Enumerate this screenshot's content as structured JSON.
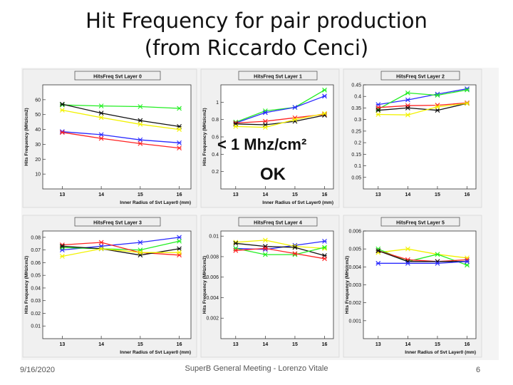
{
  "slide": {
    "title_line1": "Hit Frequency for pair production",
    "title_line2": "(from Riccardo Cenci)",
    "annotation": "< 1 Mhz/cm²",
    "annotation_ok": "OK",
    "footer_date": "9/16/2020",
    "footer_center": "SuperB General Meeting - Lorenzo Vitale",
    "footer_page": "6"
  },
  "colors": {
    "black": "#111111",
    "red": "#ff2222",
    "green": "#22ee22",
    "blue": "#2a2aff",
    "yellow": "#f2f200",
    "magenta": "#dd22dd",
    "panel_bg": "#f0f0f0",
    "title_box": "#eeeeee"
  },
  "chart_data": [
    {
      "type": "line",
      "title": "HitsFreq Svt Layer 0",
      "xlabel": "Inner Radius of Svt Layer0 (mm)",
      "ylabel": "Hits Frequency (MHz/cm2)",
      "x": [
        13,
        14,
        15,
        16
      ],
      "ylim": [
        0,
        70
      ],
      "yticks": [
        10,
        20,
        30,
        40,
        50,
        60
      ],
      "ytick_labels": [
        "10",
        "20",
        "30",
        "40",
        "50",
        "60"
      ],
      "series": [
        {
          "color": "green",
          "values": [
            56.5,
            55.8,
            55.4,
            54.2
          ]
        },
        {
          "color": "black",
          "values": [
            57,
            51,
            46,
            42
          ]
        },
        {
          "color": "yellow",
          "values": [
            53,
            48,
            43.5,
            40
          ]
        },
        {
          "color": "blue",
          "values": [
            38.5,
            36.5,
            33,
            31
          ]
        },
        {
          "color": "red",
          "values": [
            38,
            34,
            30.5,
            27.5
          ]
        }
      ]
    },
    {
      "type": "line",
      "title": "HitsFreq Svt Layer 1",
      "xlabel": "Inner Radius of Svt Layer0 (mm)",
      "ylabel": "Hits Frequency (MHz/cm2)",
      "x": [
        13,
        14,
        15,
        16
      ],
      "ylim": [
        0,
        1.2
      ],
      "yticks": [
        0.2,
        0.4,
        0.6,
        0.8,
        1.0
      ],
      "ytick_labels": [
        "0.2",
        "0.4",
        "0.6",
        "0.8",
        "1"
      ],
      "series": [
        {
          "color": "green",
          "values": [
            0.77,
            0.9,
            0.94,
            1.14
          ]
        },
        {
          "color": "blue",
          "values": [
            0.76,
            0.88,
            0.94,
            1.07
          ]
        },
        {
          "color": "red",
          "values": [
            0.76,
            0.78,
            0.82,
            0.86
          ]
        },
        {
          "color": "black",
          "values": [
            0.75,
            0.74,
            0.78,
            0.85
          ]
        },
        {
          "color": "yellow",
          "values": [
            0.72,
            0.71,
            0.8,
            0.87
          ]
        }
      ]
    },
    {
      "type": "line",
      "title": "HitsFreq Svt Layer 2",
      "xlabel": "",
      "ylabel": "",
      "x": [
        13,
        14,
        15,
        16
      ],
      "ylim": [
        0,
        0.45
      ],
      "yticks": [
        0.05,
        0.1,
        0.15,
        0.2,
        0.25,
        0.3,
        0.35,
        0.4,
        0.45
      ],
      "ytick_labels": [
        "0.05",
        "0.1",
        "0.15",
        "0.2",
        "0.25",
        "0.3",
        "0.35",
        "0.4",
        "0.45"
      ],
      "series": [
        {
          "color": "blue",
          "values": [
            0.365,
            0.385,
            0.41,
            0.433
          ]
        },
        {
          "color": "green",
          "values": [
            0.345,
            0.415,
            0.405,
            0.428
          ]
        },
        {
          "color": "red",
          "values": [
            0.352,
            0.36,
            0.362,
            0.372
          ]
        },
        {
          "color": "black",
          "values": [
            0.34,
            0.35,
            0.34,
            0.37
          ]
        },
        {
          "color": "yellow",
          "values": [
            0.322,
            0.32,
            0.355,
            0.37
          ]
        }
      ]
    },
    {
      "type": "line",
      "title": "HitsFreq Svt Layer 3",
      "xlabel": "Inner Radius of Svt Layer0 (mm)",
      "ylabel": "Hits Frequency (MHz/cm2)",
      "x": [
        13,
        14,
        15,
        16
      ],
      "ylim": [
        0,
        0.085
      ],
      "yticks": [
        0.01,
        0.02,
        0.03,
        0.04,
        0.05,
        0.06,
        0.07,
        0.08
      ],
      "ytick_labels": [
        "0.01",
        "0.02",
        "0.03",
        "0.04",
        "0.05",
        "0.06",
        "0.07",
        "0.08"
      ],
      "series": [
        {
          "color": "blue",
          "values": [
            0.07,
            0.073,
            0.076,
            0.08
          ]
        },
        {
          "color": "green",
          "values": [
            0.072,
            0.071,
            0.07,
            0.077
          ]
        },
        {
          "color": "red",
          "values": [
            0.074,
            0.076,
            0.068,
            0.066
          ]
        },
        {
          "color": "black",
          "values": [
            0.073,
            0.071,
            0.066,
            0.071
          ]
        },
        {
          "color": "yellow",
          "values": [
            0.065,
            0.071,
            0.068,
            0.068
          ]
        }
      ]
    },
    {
      "type": "line",
      "title": "HitsFreq Svt Layer 4",
      "xlabel": "",
      "ylabel": "Hits Frequency (MHz/cm2)",
      "x": [
        13,
        14,
        15,
        16
      ],
      "ylim": [
        0,
        0.0105
      ],
      "yticks": [
        0.002,
        0.004,
        0.006,
        0.008,
        0.01
      ],
      "ytick_labels": [
        "0.002",
        "0.004",
        "0.006",
        "0.008",
        "0.01"
      ],
      "series": [
        {
          "color": "blue",
          "values": [
            0.0088,
            0.0087,
            0.0091,
            0.0095
          ]
        },
        {
          "color": "yellow",
          "values": [
            0.0094,
            0.0096,
            0.009,
            0.0088
          ]
        },
        {
          "color": "black",
          "values": [
            0.0093,
            0.009,
            0.0089,
            0.0081
          ]
        },
        {
          "color": "green",
          "values": [
            0.0088,
            0.0082,
            0.0082,
            0.0089
          ]
        },
        {
          "color": "red",
          "values": [
            0.0086,
            0.0088,
            0.0083,
            0.0078
          ]
        }
      ]
    },
    {
      "type": "line",
      "title": "HitsFreq Svt Layer 5",
      "xlabel": "Inner Radius of Svt Layer0 (mm)",
      "ylabel": "Hits Frequency (MHz/cm2)",
      "x": [
        13,
        14,
        15,
        16
      ],
      "ylim": [
        0,
        0.006
      ],
      "yticks": [
        0.001,
        0.002,
        0.003,
        0.004,
        0.005,
        0.006
      ],
      "ytick_labels": [
        "0.001",
        "0.002",
        "0.003",
        "0.004",
        "0.005",
        "0.006"
      ],
      "series": [
        {
          "color": "yellow",
          "values": [
            0.0048,
            0.005,
            0.0047,
            0.0045
          ]
        },
        {
          "color": "green",
          "values": [
            0.005,
            0.0043,
            0.0047,
            0.0041
          ]
        },
        {
          "color": "red",
          "values": [
            0.0049,
            0.0044,
            0.0043,
            0.0044
          ]
        },
        {
          "color": "black",
          "values": [
            0.0049,
            0.0043,
            0.0043,
            0.0043
          ]
        },
        {
          "color": "blue",
          "values": [
            0.0042,
            0.0042,
            0.0042,
            0.0043
          ]
        }
      ]
    }
  ]
}
